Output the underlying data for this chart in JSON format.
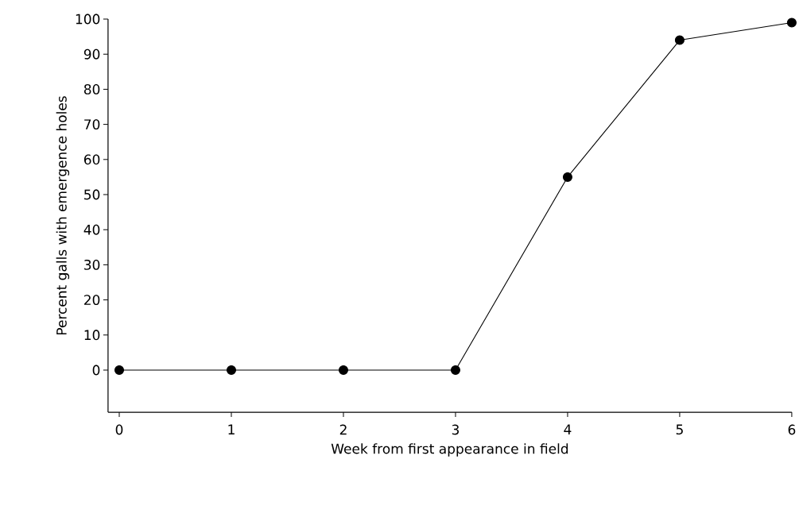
{
  "chart_data": {
    "type": "line",
    "xlabel": "Week from first appearance in field",
    "ylabel": "Percent galls with emergence holes",
    "x": [
      0,
      1,
      2,
      3,
      4,
      5,
      6
    ],
    "series": [
      {
        "color": "#000000",
        "values": [
          0,
          0,
          0,
          0,
          55,
          94,
          99
        ]
      }
    ],
    "xlim": [
      -0.1,
      6
    ],
    "xticks": [
      0,
      1,
      2,
      3,
      4,
      5,
      6
    ],
    "ylim": [
      -12,
      100
    ],
    "yticks": [
      0,
      10,
      20,
      30,
      40,
      50,
      60,
      70,
      80,
      90,
      100
    ],
    "grid": false,
    "marker": "circle",
    "line_style": "solid"
  }
}
